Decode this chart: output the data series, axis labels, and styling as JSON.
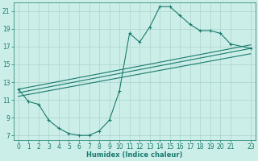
{
  "xlabel": "Humidex (Indice chaleur)",
  "bg_color": "#cceee8",
  "grid_color": "#b0d8d0",
  "line_color": "#1a7a6e",
  "xlim": [
    -0.5,
    23.5
  ],
  "ylim": [
    6.5,
    22.0
  ],
  "yticks": [
    7,
    9,
    11,
    13,
    15,
    17,
    19,
    21
  ],
  "xticks": [
    0,
    1,
    2,
    3,
    4,
    5,
    6,
    7,
    8,
    9,
    10,
    11,
    12,
    13,
    14,
    15,
    16,
    17,
    18,
    19,
    20,
    21,
    23
  ],
  "xtick_labels": [
    "0",
    "1",
    "2",
    "3",
    "4",
    "5",
    "6",
    "7",
    "8",
    "9",
    "10",
    "11",
    "12",
    "13",
    "14",
    "15",
    "16",
    "17",
    "18",
    "19",
    "20",
    "21",
    "23"
  ],
  "series1_x": [
    0,
    1,
    2,
    3,
    4,
    5,
    6,
    7,
    8,
    9,
    10,
    11,
    12,
    13,
    14,
    15,
    16,
    17,
    18,
    19,
    20,
    21,
    23
  ],
  "series1_y": [
    12.2,
    10.8,
    10.5,
    8.7,
    7.8,
    7.2,
    7.0,
    7.0,
    7.5,
    8.7,
    12.0,
    18.5,
    17.5,
    19.2,
    21.5,
    21.5,
    20.5,
    19.5,
    18.8,
    18.8,
    18.5,
    17.3,
    16.8
  ],
  "line1_x": [
    0,
    23
  ],
  "line1_y": [
    11.8,
    16.8
  ],
  "line2_x": [
    0,
    23
  ],
  "line2_y": [
    12.2,
    17.2
  ],
  "line3_x": [
    0,
    23
  ],
  "line3_y": [
    11.4,
    16.2
  ]
}
